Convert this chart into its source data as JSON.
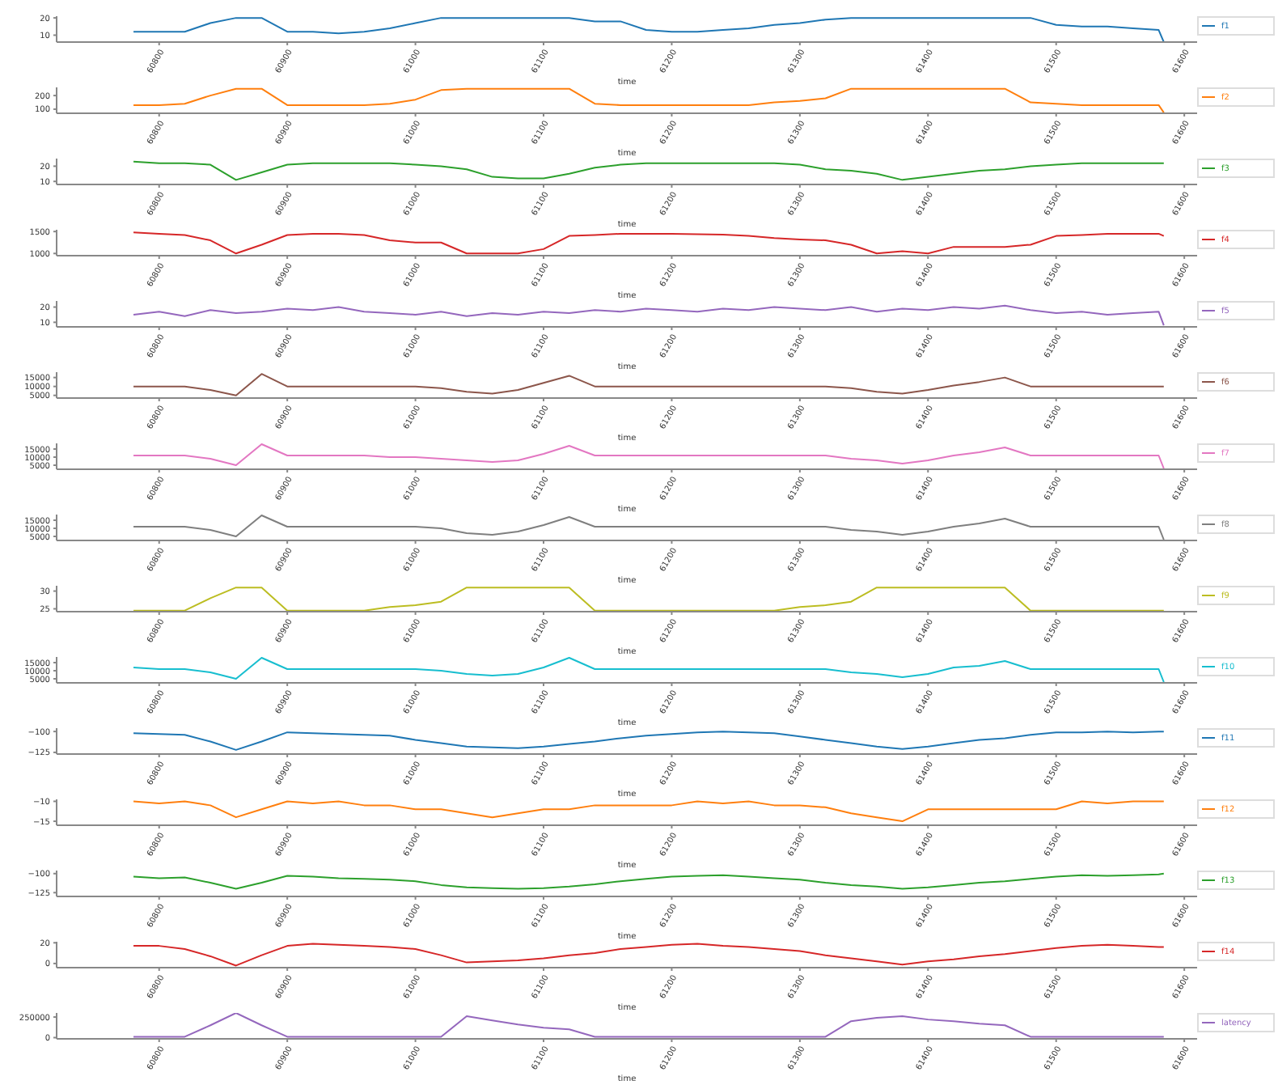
{
  "chart_data": [
    {
      "type": "line",
      "xlabel": "time",
      "legend": "top right",
      "marker": "none",
      "xlim": [
        60720,
        61610
      ],
      "xticks": [
        60800,
        60900,
        61000,
        61100,
        61200,
        61300,
        61400,
        61500,
        61600
      ],
      "ylim": [
        6,
        21
      ],
      "yticks": [
        10,
        20
      ],
      "x": [
        60780,
        60800,
        60820,
        60840,
        60860,
        60880,
        60900,
        60920,
        60940,
        60960,
        60980,
        61000,
        61020,
        61040,
        61060,
        61080,
        61100,
        61120,
        61140,
        61160,
        61180,
        61200,
        61220,
        61240,
        61260,
        61280,
        61300,
        61320,
        61340,
        61360,
        61380,
        61400,
        61420,
        61440,
        61460,
        61480,
        61500,
        61520,
        61540,
        61560,
        61580,
        61584
      ],
      "series": [
        {
          "name": "f1",
          "color": "#1f77b4",
          "values": [
            12,
            12,
            12,
            17,
            20,
            20,
            12,
            12,
            11,
            12,
            14,
            17,
            20,
            20,
            20,
            20,
            20,
            20,
            18,
            18,
            13,
            12,
            12,
            13,
            14,
            16,
            17,
            19,
            20,
            20,
            20,
            20,
            20,
            20,
            20,
            20,
            16,
            15,
            15,
            14,
            13,
            6
          ]
        }
      ]
    },
    {
      "type": "line",
      "xlabel": "time",
      "legend": "top right",
      "marker": "none",
      "xlim": [
        60720,
        61610
      ],
      "xticks": [
        60800,
        60900,
        61000,
        61100,
        61200,
        61300,
        61400,
        61500,
        61600
      ],
      "ylim": [
        70,
        260
      ],
      "yticks": [
        100,
        200
      ],
      "x": [
        60780,
        60800,
        60820,
        60840,
        60860,
        60880,
        60900,
        60920,
        60940,
        60960,
        60980,
        61000,
        61020,
        61040,
        61060,
        61080,
        61100,
        61120,
        61140,
        61160,
        61180,
        61200,
        61220,
        61240,
        61260,
        61280,
        61300,
        61320,
        61340,
        61360,
        61380,
        61400,
        61420,
        61440,
        61460,
        61480,
        61500,
        61520,
        61540,
        61560,
        61580,
        61584
      ],
      "series": [
        {
          "name": "f2",
          "color": "#ff7f0e",
          "values": [
            130,
            130,
            140,
            200,
            250,
            250,
            130,
            130,
            130,
            130,
            140,
            170,
            240,
            250,
            250,
            250,
            250,
            250,
            140,
            130,
            130,
            130,
            130,
            130,
            130,
            150,
            160,
            180,
            250,
            250,
            250,
            250,
            250,
            250,
            250,
            150,
            140,
            130,
            130,
            130,
            130,
            75
          ]
        }
      ]
    },
    {
      "type": "line",
      "xlabel": "time",
      "legend": "top right",
      "marker": "none",
      "xlim": [
        60720,
        61610
      ],
      "xticks": [
        60800,
        60900,
        61000,
        61100,
        61200,
        61300,
        61400,
        61500,
        61600
      ],
      "ylim": [
        8,
        25
      ],
      "yticks": [
        10,
        20
      ],
      "x": [
        60780,
        60800,
        60820,
        60840,
        60860,
        60880,
        60900,
        60920,
        60940,
        60960,
        60980,
        61000,
        61020,
        61040,
        61060,
        61080,
        61100,
        61120,
        61140,
        61160,
        61180,
        61200,
        61220,
        61240,
        61260,
        61280,
        61300,
        61320,
        61340,
        61360,
        61380,
        61400,
        61420,
        61440,
        61460,
        61480,
        61500,
        61520,
        61540,
        61560,
        61580,
        61584
      ],
      "series": [
        {
          "name": "f3",
          "color": "#2ca02c",
          "values": [
            23,
            22,
            22,
            21,
            11,
            16,
            21,
            22,
            22,
            22,
            22,
            21,
            20,
            18,
            13,
            12,
            12,
            15,
            19,
            21,
            22,
            22,
            22,
            22,
            22,
            22,
            21,
            18,
            17,
            15,
            11,
            13,
            15,
            17,
            18,
            20,
            21,
            22,
            22,
            22,
            22,
            22
          ]
        }
      ]
    },
    {
      "type": "line",
      "xlabel": "time",
      "legend": "top right",
      "marker": "none",
      "xlim": [
        60720,
        61610
      ],
      "xticks": [
        60800,
        60900,
        61000,
        61100,
        61200,
        61300,
        61400,
        61500,
        61600
      ],
      "ylim": [
        950,
        1540
      ],
      "yticks": [
        1000,
        1500
      ],
      "x": [
        60780,
        60800,
        60820,
        60840,
        60860,
        60880,
        60900,
        60920,
        60940,
        60960,
        60980,
        61000,
        61020,
        61040,
        61060,
        61080,
        61100,
        61120,
        61140,
        61160,
        61180,
        61200,
        61220,
        61240,
        61260,
        61280,
        61300,
        61320,
        61340,
        61360,
        61380,
        61400,
        61420,
        61440,
        61460,
        61480,
        61500,
        61520,
        61540,
        61560,
        61580,
        61584
      ],
      "series": [
        {
          "name": "f4",
          "color": "#d62728",
          "values": [
            1480,
            1450,
            1420,
            1300,
            1000,
            1200,
            1420,
            1450,
            1450,
            1420,
            1300,
            1250,
            1250,
            1000,
            1000,
            1000,
            1100,
            1400,
            1420,
            1450,
            1450,
            1450,
            1440,
            1430,
            1400,
            1350,
            1320,
            1300,
            1200,
            1000,
            1050,
            1000,
            1150,
            1150,
            1150,
            1200,
            1400,
            1420,
            1450,
            1450,
            1450,
            1400
          ]
        }
      ]
    },
    {
      "type": "line",
      "xlabel": "time",
      "legend": "top right",
      "marker": "none",
      "xlim": [
        60720,
        61610
      ],
      "xticks": [
        60800,
        60900,
        61000,
        61100,
        61200,
        61300,
        61400,
        61500,
        61600
      ],
      "ylim": [
        7,
        24
      ],
      "yticks": [
        10,
        20
      ],
      "x": [
        60780,
        60800,
        60820,
        60840,
        60860,
        60880,
        60900,
        60920,
        60940,
        60960,
        60980,
        61000,
        61020,
        61040,
        61060,
        61080,
        61100,
        61120,
        61140,
        61160,
        61180,
        61200,
        61220,
        61240,
        61260,
        61280,
        61300,
        61320,
        61340,
        61360,
        61380,
        61400,
        61420,
        61440,
        61460,
        61480,
        61500,
        61520,
        61540,
        61560,
        61580,
        61584
      ],
      "series": [
        {
          "name": "f5",
          "color": "#9467bd",
          "values": [
            15,
            17,
            14,
            18,
            16,
            17,
            19,
            18,
            20,
            17,
            16,
            15,
            17,
            14,
            16,
            15,
            17,
            16,
            18,
            17,
            19,
            18,
            17,
            19,
            18,
            20,
            19,
            18,
            20,
            17,
            19,
            18,
            20,
            19,
            21,
            18,
            16,
            17,
            15,
            16,
            17,
            8
          ]
        }
      ]
    },
    {
      "type": "line",
      "xlabel": "time",
      "legend": "top right",
      "marker": "none",
      "xlim": [
        60720,
        61610
      ],
      "xticks": [
        60800,
        60900,
        61000,
        61100,
        61200,
        61300,
        61400,
        61500,
        61600
      ],
      "ylim": [
        3500,
        18000
      ],
      "yticks": [
        5000,
        10000,
        15000
      ],
      "x": [
        60780,
        60800,
        60820,
        60840,
        60860,
        60880,
        60900,
        60920,
        60940,
        60960,
        60980,
        61000,
        61020,
        61040,
        61060,
        61080,
        61100,
        61120,
        61140,
        61160,
        61180,
        61200,
        61220,
        61240,
        61260,
        61280,
        61300,
        61320,
        61340,
        61360,
        61380,
        61400,
        61420,
        61440,
        61460,
        61480,
        61500,
        61520,
        61540,
        61560,
        61580,
        61584
      ],
      "series": [
        {
          "name": "f6",
          "color": "#8c564b",
          "values": [
            10000,
            10000,
            10000,
            8000,
            5000,
            17000,
            10000,
            10000,
            10000,
            10000,
            10000,
            10000,
            9000,
            7000,
            6000,
            8000,
            12000,
            16000,
            10000,
            10000,
            10000,
            10000,
            10000,
            10000,
            10000,
            10000,
            10000,
            10000,
            9000,
            7000,
            6000,
            8000,
            10500,
            12500,
            15000,
            10000,
            10000,
            10000,
            10000,
            10000,
            10000,
            10000
          ]
        }
      ]
    },
    {
      "type": "line",
      "xlabel": "time",
      "legend": "top right",
      "marker": "none",
      "xlim": [
        60720,
        61610
      ],
      "xticks": [
        60800,
        60900,
        61000,
        61100,
        61200,
        61300,
        61400,
        61500,
        61600
      ],
      "ylim": [
        2500,
        18500
      ],
      "yticks": [
        5000,
        10000,
        15000
      ],
      "x": [
        60780,
        60800,
        60820,
        60840,
        60860,
        60880,
        60900,
        60920,
        60940,
        60960,
        60980,
        61000,
        61020,
        61040,
        61060,
        61080,
        61100,
        61120,
        61140,
        61160,
        61180,
        61200,
        61220,
        61240,
        61260,
        61280,
        61300,
        61320,
        61340,
        61360,
        61380,
        61400,
        61420,
        61440,
        61460,
        61480,
        61500,
        61520,
        61540,
        61560,
        61580,
        61584
      ],
      "series": [
        {
          "name": "f7",
          "color": "#e377c2",
          "values": [
            11000,
            11000,
            11000,
            9000,
            5000,
            18000,
            11000,
            11000,
            11000,
            11000,
            10000,
            10000,
            9000,
            8000,
            7000,
            8000,
            12000,
            17000,
            11000,
            11000,
            11000,
            11000,
            11000,
            11000,
            11000,
            11000,
            11000,
            11000,
            9000,
            8000,
            6000,
            8000,
            11000,
            13000,
            16000,
            11000,
            11000,
            11000,
            11000,
            11000,
            11000,
            3000
          ]
        }
      ]
    },
    {
      "type": "line",
      "xlabel": "time",
      "legend": "top right",
      "marker": "none",
      "xlim": [
        60720,
        61610
      ],
      "xticks": [
        60800,
        60900,
        61000,
        61100,
        61200,
        61300,
        61400,
        61500,
        61600
      ],
      "ylim": [
        2500,
        18500
      ],
      "yticks": [
        5000,
        10000,
        15000
      ],
      "x": [
        60780,
        60800,
        60820,
        60840,
        60860,
        60880,
        60900,
        60920,
        60940,
        60960,
        60980,
        61000,
        61020,
        61040,
        61060,
        61080,
        61100,
        61120,
        61140,
        61160,
        61180,
        61200,
        61220,
        61240,
        61260,
        61280,
        61300,
        61320,
        61340,
        61360,
        61380,
        61400,
        61420,
        61440,
        61460,
        61480,
        61500,
        61520,
        61540,
        61560,
        61580,
        61584
      ],
      "series": [
        {
          "name": "f8",
          "color": "#7f7f7f",
          "values": [
            11000,
            11000,
            11000,
            9000,
            5000,
            18000,
            11000,
            11000,
            11000,
            11000,
            11000,
            11000,
            10000,
            7000,
            6000,
            8000,
            12000,
            17000,
            11000,
            11000,
            11000,
            11000,
            11000,
            11000,
            11000,
            11000,
            11000,
            11000,
            9000,
            8000,
            6000,
            8000,
            11000,
            13000,
            16000,
            11000,
            11000,
            11000,
            11000,
            11000,
            11000,
            3000
          ]
        }
      ]
    },
    {
      "type": "line",
      "xlabel": "time",
      "legend": "top right",
      "marker": "none",
      "xlim": [
        60720,
        61610
      ],
      "xticks": [
        60800,
        60900,
        61000,
        61100,
        61200,
        61300,
        61400,
        61500,
        61600
      ],
      "ylim": [
        24.2,
        31.5
      ],
      "yticks": [
        25,
        30
      ],
      "x": [
        60780,
        60800,
        60820,
        60840,
        60860,
        60880,
        60900,
        60920,
        60940,
        60960,
        60980,
        61000,
        61020,
        61040,
        61060,
        61080,
        61100,
        61120,
        61140,
        61160,
        61180,
        61200,
        61220,
        61240,
        61260,
        61280,
        61300,
        61320,
        61340,
        61360,
        61380,
        61400,
        61420,
        61440,
        61460,
        61480,
        61500,
        61520,
        61540,
        61560,
        61580,
        61584
      ],
      "series": [
        {
          "name": "f9",
          "color": "#bcbd22",
          "values": [
            24.5,
            24.5,
            24.5,
            28,
            31,
            31,
            24.5,
            24.5,
            24.5,
            24.5,
            25.5,
            26,
            27,
            31,
            31,
            31,
            31,
            31,
            24.5,
            24.5,
            24.5,
            24.5,
            24.5,
            24.5,
            24.5,
            24.5,
            25.5,
            26,
            27,
            31,
            31,
            31,
            31,
            31,
            31,
            24.5,
            24.5,
            24.5,
            24.5,
            24.5,
            24.5,
            24.5
          ]
        }
      ]
    },
    {
      "type": "line",
      "xlabel": "time",
      "legend": "top right",
      "marker": "none",
      "xlim": [
        60720,
        61610
      ],
      "xticks": [
        60800,
        60900,
        61000,
        61100,
        61200,
        61300,
        61400,
        61500,
        61600
      ],
      "ylim": [
        2500,
        18500
      ],
      "yticks": [
        5000,
        10000,
        15000
      ],
      "x": [
        60780,
        60800,
        60820,
        60840,
        60860,
        60880,
        60900,
        60920,
        60940,
        60960,
        60980,
        61000,
        61020,
        61040,
        61060,
        61080,
        61100,
        61120,
        61140,
        61160,
        61180,
        61200,
        61220,
        61240,
        61260,
        61280,
        61300,
        61320,
        61340,
        61360,
        61380,
        61400,
        61420,
        61440,
        61460,
        61480,
        61500,
        61520,
        61540,
        61560,
        61580,
        61584
      ],
      "series": [
        {
          "name": "f10",
          "color": "#17becf",
          "values": [
            12000,
            11000,
            11000,
            9000,
            5000,
            18000,
            11000,
            11000,
            11000,
            11000,
            11000,
            11000,
            10000,
            8000,
            7000,
            8000,
            12000,
            18000,
            11000,
            11000,
            11000,
            11000,
            11000,
            11000,
            11000,
            11000,
            11000,
            11000,
            9000,
            8000,
            6000,
            8000,
            12000,
            13000,
            16000,
            11000,
            11000,
            11000,
            11000,
            11000,
            11000,
            3000
          ]
        }
      ]
    },
    {
      "type": "line",
      "xlabel": "time",
      "legend": "top right",
      "marker": "none",
      "xlim": [
        60720,
        61610
      ],
      "xticks": [
        60800,
        60900,
        61000,
        61100,
        61200,
        61300,
        61400,
        61500,
        61600
      ],
      "ylim": [
        -127,
        -96
      ],
      "yticks": [
        -125,
        -100
      ],
      "x": [
        60780,
        60800,
        60820,
        60840,
        60860,
        60880,
        60900,
        60920,
        60940,
        60960,
        60980,
        61000,
        61020,
        61040,
        61060,
        61080,
        61100,
        61120,
        61140,
        61160,
        61180,
        61200,
        61220,
        61240,
        61260,
        61280,
        61300,
        61320,
        61340,
        61360,
        61380,
        61400,
        61420,
        61440,
        61460,
        61480,
        61500,
        61520,
        61540,
        61560,
        61580,
        61584
      ],
      "series": [
        {
          "name": "f11",
          "color": "#1f77b4",
          "values": [
            -102,
            -103,
            -104,
            -112,
            -122,
            -112,
            -101,
            -102,
            -103,
            -104,
            -105,
            -110,
            -114,
            -118,
            -119,
            -120,
            -118,
            -115,
            -112,
            -108,
            -105,
            -103,
            -101,
            -100,
            -101,
            -102,
            -106,
            -110,
            -114,
            -118,
            -121,
            -118,
            -114,
            -110,
            -108,
            -104,
            -101,
            -101,
            -100,
            -101,
            -100,
            -100
          ]
        }
      ]
    },
    {
      "type": "line",
      "xlabel": "time",
      "legend": "top right",
      "marker": "none",
      "xlim": [
        60720,
        61610
      ],
      "xticks": [
        60800,
        60900,
        61000,
        61100,
        61200,
        61300,
        61400,
        61500,
        61600
      ],
      "ylim": [
        -16,
        -9.5
      ],
      "yticks": [
        -15,
        -10
      ],
      "x": [
        60780,
        60800,
        60820,
        60840,
        60860,
        60880,
        60900,
        60920,
        60940,
        60960,
        60980,
        61000,
        61020,
        61040,
        61060,
        61080,
        61100,
        61120,
        61140,
        61160,
        61180,
        61200,
        61220,
        61240,
        61260,
        61280,
        61300,
        61320,
        61340,
        61360,
        61380,
        61400,
        61420,
        61440,
        61460,
        61480,
        61500,
        61520,
        61540,
        61560,
        61580,
        61584
      ],
      "series": [
        {
          "name": "f12",
          "color": "#ff7f0e",
          "values": [
            -10,
            -10.5,
            -10,
            -11,
            -14,
            -12,
            -10,
            -10.5,
            -10,
            -11,
            -11,
            -12,
            -12,
            -13,
            -14,
            -13,
            -12,
            -12,
            -11,
            -11,
            -11,
            -11,
            -10,
            -10.5,
            -10,
            -11,
            -11,
            -11.5,
            -13,
            -14,
            -15,
            -12,
            -12,
            -12,
            -12,
            -12,
            -12,
            -10,
            -10.5,
            -10,
            -10,
            -10
          ]
        }
      ]
    },
    {
      "type": "line",
      "xlabel": "time",
      "legend": "top right",
      "marker": "none",
      "xlim": [
        60720,
        61610
      ],
      "xticks": [
        60800,
        60900,
        61000,
        61100,
        61200,
        61300,
        61400,
        61500,
        61600
      ],
      "ylim": [
        -130,
        -96
      ],
      "yticks": [
        -125,
        -100
      ],
      "x": [
        60780,
        60800,
        60820,
        60840,
        60860,
        60880,
        60900,
        60920,
        60940,
        60960,
        60980,
        61000,
        61020,
        61040,
        61060,
        61080,
        61100,
        61120,
        61140,
        61160,
        61180,
        61200,
        61220,
        61240,
        61260,
        61280,
        61300,
        61320,
        61340,
        61360,
        61380,
        61400,
        61420,
        61440,
        61460,
        61480,
        61500,
        61520,
        61540,
        61560,
        61580,
        61584
      ],
      "series": [
        {
          "name": "f13",
          "color": "#2ca02c",
          "values": [
            -104,
            -106,
            -105,
            -112,
            -120,
            -112,
            -103,
            -104,
            -106,
            -107,
            -108,
            -110,
            -115,
            -118,
            -119,
            -120,
            -119,
            -117,
            -114,
            -110,
            -107,
            -104,
            -103,
            -102,
            -104,
            -106,
            -108,
            -112,
            -115,
            -117,
            -120,
            -118,
            -115,
            -112,
            -110,
            -107,
            -104,
            -102,
            -103,
            -102,
            -101,
            -100
          ]
        }
      ]
    },
    {
      "type": "line",
      "xlabel": "time",
      "legend": "top right",
      "marker": "none",
      "xlim": [
        60720,
        61610
      ],
      "xticks": [
        60800,
        60900,
        61000,
        61100,
        61200,
        61300,
        61400,
        61500,
        61600
      ],
      "ylim": [
        -4,
        21
      ],
      "yticks": [
        0,
        20
      ],
      "x": [
        60780,
        60800,
        60820,
        60840,
        60860,
        60880,
        60900,
        60920,
        60940,
        60960,
        60980,
        61000,
        61020,
        61040,
        61060,
        61080,
        61100,
        61120,
        61140,
        61160,
        61180,
        61200,
        61220,
        61240,
        61260,
        61280,
        61300,
        61320,
        61340,
        61360,
        61380,
        61400,
        61420,
        61440,
        61460,
        61480,
        61500,
        61520,
        61540,
        61560,
        61580,
        61584
      ],
      "series": [
        {
          "name": "f14",
          "color": "#d62728",
          "values": [
            17,
            17,
            14,
            7,
            -2,
            8,
            17,
            19,
            18,
            17,
            16,
            14,
            8,
            1,
            2,
            3,
            5,
            8,
            10,
            14,
            16,
            18,
            19,
            17,
            16,
            14,
            12,
            8,
            5,
            2,
            -1,
            2,
            4,
            7,
            9,
            12,
            15,
            17,
            18,
            17,
            16,
            16
          ]
        }
      ]
    },
    {
      "type": "line",
      "xlabel": "time",
      "legend": "top right",
      "marker": "none",
      "xlim": [
        60720,
        61610
      ],
      "xticks": [
        60800,
        60900,
        61000,
        61100,
        61200,
        61300,
        61400,
        61500,
        61600
      ],
      "ylim": [
        -15000,
        300000
      ],
      "yticks": [
        0,
        250000
      ],
      "x": [
        60780,
        60800,
        60820,
        60840,
        60860,
        60880,
        60900,
        60920,
        60940,
        60960,
        60980,
        61000,
        61020,
        61040,
        61060,
        61080,
        61100,
        61120,
        61140,
        61160,
        61180,
        61200,
        61220,
        61240,
        61260,
        61280,
        61300,
        61320,
        61340,
        61360,
        61380,
        61400,
        61420,
        61440,
        61460,
        61480,
        61500,
        61520,
        61540,
        61560,
        61580,
        61584
      ],
      "series": [
        {
          "name": "latency",
          "color": "#9467bd",
          "values": [
            10000,
            10000,
            10000,
            150000,
            300000,
            150000,
            10000,
            10000,
            10000,
            10000,
            10000,
            10000,
            10000,
            260000,
            210000,
            160000,
            120000,
            100000,
            10000,
            10000,
            10000,
            10000,
            10000,
            10000,
            10000,
            10000,
            10000,
            10000,
            200000,
            240000,
            260000,
            220000,
            200000,
            170000,
            150000,
            10000,
            10000,
            10000,
            10000,
            10000,
            10000,
            10000
          ]
        }
      ]
    }
  ]
}
